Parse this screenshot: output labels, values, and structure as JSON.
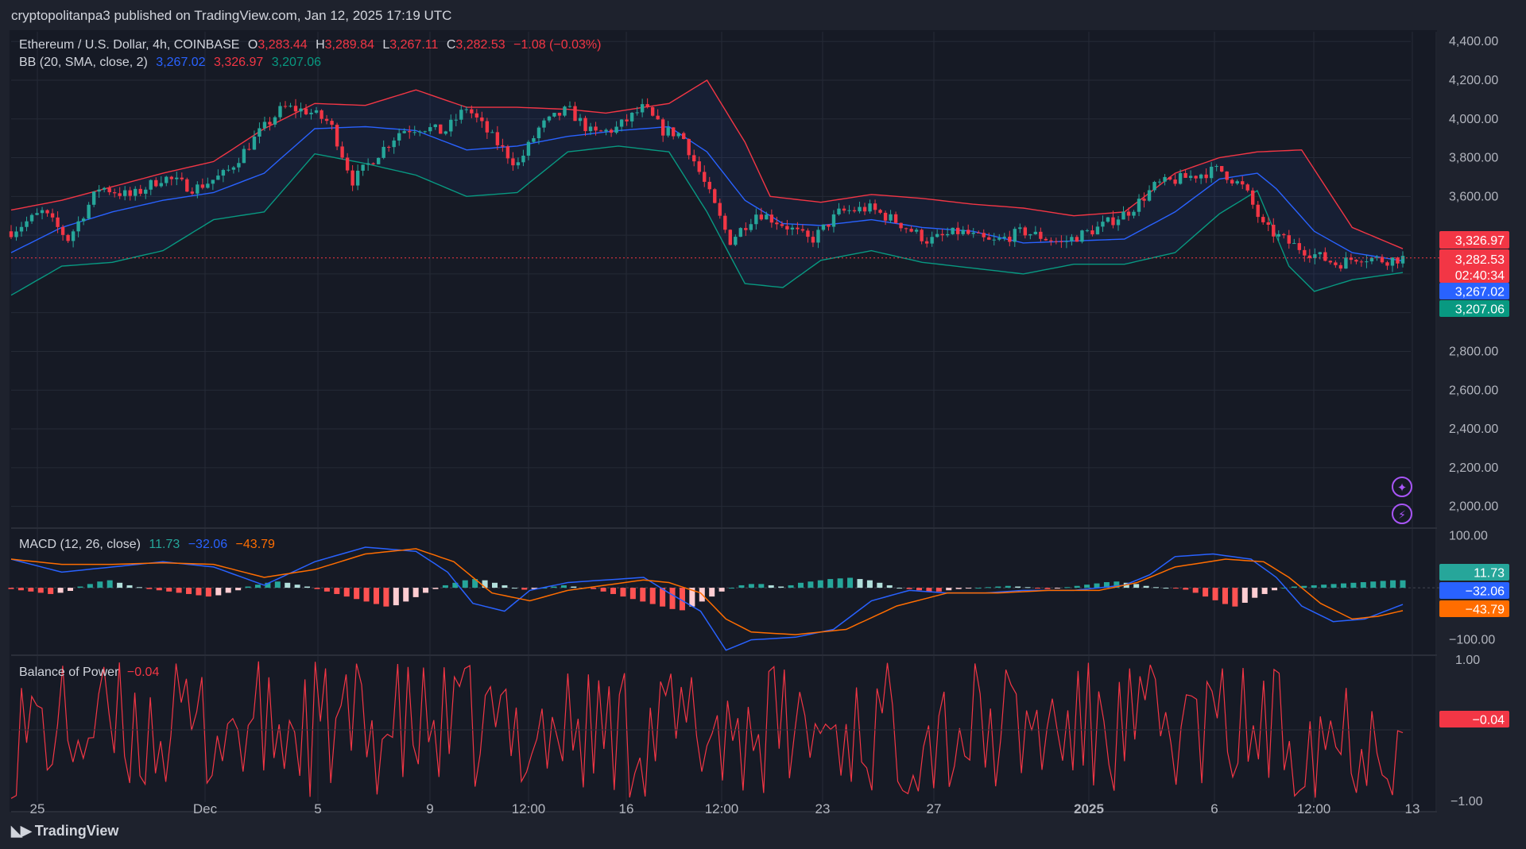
{
  "header": {
    "published": "cryptopolitanpa3 published on TradingView.com, Jan 12, 2025 17:19 UTC"
  },
  "footer": {
    "logo_text": "TradingView"
  },
  "legend": {
    "symbol": "Ethereum / U.S. Dollar, 4h, COINBASE",
    "o_label": "O",
    "o_value": "3,283.44",
    "h_label": "H",
    "h_value": "3,289.84",
    "l_label": "L",
    "l_value": "3,267.11",
    "c_label": "C",
    "c_value": "3,282.53",
    "change": "−1.08 (−0.03%)",
    "bb_label": "BB (20, SMA, close, 2)",
    "bb_basis": "3,267.02",
    "bb_upper": "3,326.97",
    "bb_lower": "3,207.06",
    "macd_label": "MACD (12, 26, close)",
    "macd_hist": "11.73",
    "macd_line": "−32.06",
    "macd_signal": "−43.79",
    "bop_label": "Balance of Power",
    "bop_value": "−0.04"
  },
  "price_badges": {
    "upper": "3,326.97",
    "close": "3,282.53",
    "countdown": "02:40:34",
    "basis": "3,267.02",
    "lower": "3,207.06"
  },
  "macd_badges": {
    "hist": "11.73",
    "macd": "−32.06",
    "signal": "−43.79"
  },
  "bop_badge": "−0.04",
  "colors": {
    "background": "#1e222d",
    "panel": "#161a25",
    "up": "#26a69a",
    "down": "#f23645",
    "bb_upper": "#f23645",
    "bb_basis": "#2962ff",
    "bb_lower": "#089981",
    "macd": "#2962ff",
    "signal": "#ff6d00",
    "bop": "#f23645"
  },
  "chart_data": {
    "type": "candlestick",
    "symbol": "Ethereum / U.S. Dollar",
    "interval": "4h",
    "exchange": "COINBASE",
    "price_axis": {
      "ticks": [
        "4,400.00",
        "4,200.00",
        "4,000.00",
        "3,800.00",
        "3,600.00",
        "2,800.00",
        "2,600.00",
        "2,400.00",
        "2,200.00",
        "2,000.00"
      ],
      "range": [
        1900,
        4450
      ]
    },
    "x_axis": {
      "ticks": [
        "25",
        "Dec",
        "5",
        "9",
        "12:00",
        "16",
        "12:00",
        "23",
        "27",
        "2025",
        "6",
        "12:00",
        "13"
      ]
    },
    "price_path": [
      [
        0,
        3420
      ],
      [
        25,
        3520
      ],
      [
        45,
        3380
      ],
      [
        70,
        3650
      ],
      [
        95,
        3600
      ],
      [
        120,
        3700
      ],
      [
        145,
        3640
      ],
      [
        170,
        3720
      ],
      [
        195,
        3920
      ],
      [
        215,
        4060
      ],
      [
        235,
        4040
      ],
      [
        252,
        3980
      ],
      [
        270,
        3680
      ],
      [
        290,
        3820
      ],
      [
        308,
        3940
      ],
      [
        325,
        3960
      ],
      [
        342,
        3930
      ],
      [
        360,
        4060
      ],
      [
        378,
        3920
      ],
      [
        400,
        3760
      ],
      [
        418,
        3960
      ],
      [
        440,
        4050
      ],
      [
        460,
        3920
      ],
      [
        478,
        3950
      ],
      [
        500,
        4060
      ],
      [
        515,
        3940
      ],
      [
        530,
        3920
      ],
      [
        550,
        3640
      ],
      [
        568,
        3370
      ],
      [
        590,
        3520
      ],
      [
        612,
        3450
      ],
      [
        632,
        3370
      ],
      [
        655,
        3520
      ],
      [
        678,
        3540
      ],
      [
        700,
        3470
      ],
      [
        725,
        3370
      ],
      [
        750,
        3420
      ],
      [
        775,
        3360
      ],
      [
        800,
        3420
      ],
      [
        830,
        3360
      ],
      [
        860,
        3440
      ],
      [
        885,
        3530
      ],
      [
        905,
        3660
      ],
      [
        930,
        3700
      ],
      [
        955,
        3740
      ],
      [
        975,
        3640
      ],
      [
        990,
        3440
      ],
      [
        1010,
        3360
      ],
      [
        1030,
        3300
      ],
      [
        1048,
        3250
      ],
      [
        1065,
        3290
      ],
      [
        1085,
        3270
      ],
      [
        1100,
        3282
      ]
    ],
    "bollinger": {
      "upper": [
        [
          0,
          3530
        ],
        [
          40,
          3580
        ],
        [
          80,
          3650
        ],
        [
          120,
          3720
        ],
        [
          160,
          3780
        ],
        [
          200,
          3950
        ],
        [
          240,
          4080
        ],
        [
          280,
          4070
        ],
        [
          320,
          4150
        ],
        [
          360,
          4060
        ],
        [
          400,
          4060
        ],
        [
          440,
          4050
        ],
        [
          470,
          4030
        ],
        [
          490,
          4050
        ],
        [
          520,
          4080
        ],
        [
          550,
          4200
        ],
        [
          580,
          3880
        ],
        [
          600,
          3600
        ],
        [
          640,
          3570
        ],
        [
          680,
          3610
        ],
        [
          720,
          3590
        ],
        [
          760,
          3560
        ],
        [
          800,
          3540
        ],
        [
          840,
          3500
        ],
        [
          880,
          3520
        ],
        [
          920,
          3720
        ],
        [
          955,
          3800
        ],
        [
          985,
          3830
        ],
        [
          1020,
          3840
        ],
        [
          1060,
          3440
        ],
        [
          1100,
          3330
        ]
      ],
      "basis": [
        [
          0,
          3310
        ],
        [
          40,
          3440
        ],
        [
          80,
          3520
        ],
        [
          120,
          3580
        ],
        [
          160,
          3620
        ],
        [
          200,
          3720
        ],
        [
          240,
          3950
        ],
        [
          280,
          3960
        ],
        [
          320,
          3940
        ],
        [
          360,
          3840
        ],
        [
          400,
          3860
        ],
        [
          440,
          3910
        ],
        [
          480,
          3940
        ],
        [
          520,
          3960
        ],
        [
          550,
          3830
        ],
        [
          580,
          3580
        ],
        [
          610,
          3460
        ],
        [
          640,
          3450
        ],
        [
          680,
          3480
        ],
        [
          720,
          3440
        ],
        [
          760,
          3420
        ],
        [
          800,
          3360
        ],
        [
          840,
          3370
        ],
        [
          880,
          3380
        ],
        [
          920,
          3520
        ],
        [
          955,
          3690
        ],
        [
          985,
          3720
        ],
        [
          1000,
          3640
        ],
        [
          1030,
          3420
        ],
        [
          1060,
          3310
        ],
        [
          1100,
          3267
        ]
      ],
      "lower": [
        [
          0,
          3090
        ],
        [
          40,
          3240
        ],
        [
          80,
          3260
        ],
        [
          120,
          3320
        ],
        [
          160,
          3480
        ],
        [
          200,
          3520
        ],
        [
          240,
          3820
        ],
        [
          280,
          3770
        ],
        [
          320,
          3710
        ],
        [
          360,
          3600
        ],
        [
          400,
          3620
        ],
        [
          440,
          3830
        ],
        [
          480,
          3860
        ],
        [
          520,
          3830
        ],
        [
          550,
          3520
        ],
        [
          580,
          3150
        ],
        [
          610,
          3130
        ],
        [
          640,
          3270
        ],
        [
          680,
          3320
        ],
        [
          720,
          3260
        ],
        [
          760,
          3230
        ],
        [
          800,
          3200
        ],
        [
          840,
          3250
        ],
        [
          880,
          3250
        ],
        [
          920,
          3310
        ],
        [
          955,
          3510
        ],
        [
          985,
          3630
        ],
        [
          1010,
          3240
        ],
        [
          1030,
          3110
        ],
        [
          1060,
          3170
        ],
        [
          1100,
          3207
        ]
      ]
    },
    "macd": {
      "range": [
        -120,
        100
      ],
      "ticks": [
        "100.00",
        "−100.00"
      ],
      "macd_line": [
        [
          0,
          55
        ],
        [
          40,
          30
        ],
        [
          80,
          40
        ],
        [
          120,
          50
        ],
        [
          160,
          40
        ],
        [
          200,
          5
        ],
        [
          240,
          50
        ],
        [
          280,
          78
        ],
        [
          320,
          70
        ],
        [
          345,
          30
        ],
        [
          365,
          -30
        ],
        [
          390,
          -45
        ],
        [
          410,
          -5
        ],
        [
          440,
          10
        ],
        [
          470,
          15
        ],
        [
          500,
          20
        ],
        [
          520,
          -10
        ],
        [
          545,
          -45
        ],
        [
          565,
          -120
        ],
        [
          585,
          -100
        ],
        [
          620,
          -95
        ],
        [
          650,
          -80
        ],
        [
          680,
          -25
        ],
        [
          710,
          -5
        ],
        [
          740,
          -10
        ],
        [
          770,
          -10
        ],
        [
          800,
          -5
        ],
        [
          840,
          -5
        ],
        [
          880,
          5
        ],
        [
          900,
          25
        ],
        [
          920,
          60
        ],
        [
          950,
          65
        ],
        [
          980,
          55
        ],
        [
          1000,
          20
        ],
        [
          1020,
          -35
        ],
        [
          1045,
          -65
        ],
        [
          1070,
          -60
        ],
        [
          1100,
          -32
        ]
      ],
      "signal_line": [
        [
          0,
          55
        ],
        [
          40,
          45
        ],
        [
          80,
          45
        ],
        [
          120,
          48
        ],
        [
          160,
          45
        ],
        [
          200,
          20
        ],
        [
          240,
          35
        ],
        [
          280,
          65
        ],
        [
          320,
          75
        ],
        [
          350,
          50
        ],
        [
          380,
          -10
        ],
        [
          410,
          -25
        ],
        [
          440,
          -5
        ],
        [
          470,
          5
        ],
        [
          500,
          15
        ],
        [
          520,
          10
        ],
        [
          545,
          -10
        ],
        [
          565,
          -60
        ],
        [
          585,
          -85
        ],
        [
          620,
          -90
        ],
        [
          660,
          -80
        ],
        [
          700,
          -35
        ],
        [
          740,
          -10
        ],
        [
          780,
          -10
        ],
        [
          820,
          -5
        ],
        [
          860,
          -5
        ],
        [
          890,
          10
        ],
        [
          920,
          40
        ],
        [
          960,
          55
        ],
        [
          990,
          50
        ],
        [
          1010,
          20
        ],
        [
          1035,
          -30
        ],
        [
          1060,
          -60
        ],
        [
          1080,
          -55
        ],
        [
          1100,
          -44
        ]
      ],
      "histogram": [
        -2,
        -4,
        -6,
        -8,
        -10,
        -8,
        -5,
        2,
        6,
        10,
        12,
        8,
        4,
        1,
        -2,
        -4,
        -6,
        -8,
        -10,
        -12,
        -14,
        -12,
        -8,
        -4,
        2,
        5,
        8,
        10,
        8,
        5,
        2,
        -2,
        -6,
        -10,
        -14,
        -18,
        -22,
        -26,
        -30,
        -28,
        -22,
        -15,
        -8,
        -2,
        4,
        8,
        12,
        14,
        12,
        8,
        4,
        0,
        -3,
        -2,
        0,
        2,
        4,
        2,
        0,
        -2,
        -6,
        -10,
        -14,
        -18,
        -22,
        -26,
        -30,
        -34,
        -36,
        -30,
        -22,
        -14,
        -6,
        0,
        4,
        6,
        6,
        4,
        2,
        4,
        8,
        10,
        12,
        14,
        15,
        16,
        14,
        12,
        8,
        4,
        0,
        -2,
        -4,
        -6,
        -6,
        -4,
        -2,
        -1,
        0,
        1,
        2,
        3,
        2,
        1,
        -1,
        -2,
        -1,
        1,
        3,
        5,
        7,
        9,
        10,
        8,
        6,
        3,
        1,
        0,
        -1,
        -3,
        -8,
        -14,
        -20,
        -26,
        -30,
        -24,
        -16,
        -10,
        -4,
        0,
        2,
        3,
        4,
        5,
        6,
        7,
        8,
        9,
        10,
        11,
        12,
        12
      ]
    },
    "balance_of_power": {
      "range": [
        -1,
        1
      ],
      "ticks": [
        "1.00",
        "−1.00"
      ],
      "last": -0.04
    }
  }
}
